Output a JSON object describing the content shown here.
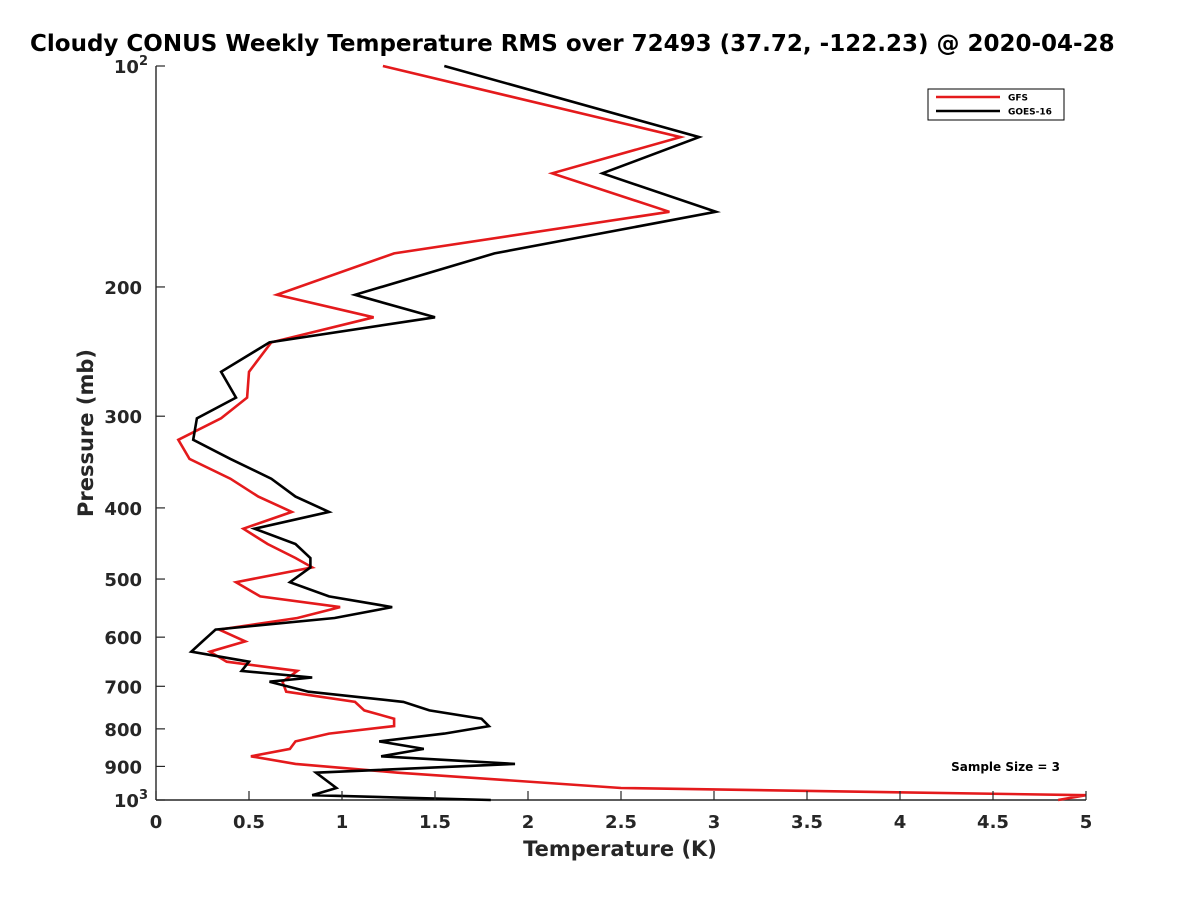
{
  "chart_data": {
    "type": "line",
    "title": "Cloudy CONUS Weekly Temperature RMS over 72493 (37.72, -122.23) @ 2020-04-28",
    "xlabel": "Temperature (K)",
    "ylabel": "Pressure (mb)",
    "xlim": [
      0,
      5
    ],
    "ylim": [
      1000,
      100
    ],
    "y_scale": "log",
    "y_direction": "reversed",
    "x_ticks": [
      {
        "value": 0,
        "label": "0"
      },
      {
        "value": 0.5,
        "label": "0.5"
      },
      {
        "value": 1,
        "label": "1"
      },
      {
        "value": 1.5,
        "label": "1.5"
      },
      {
        "value": 2,
        "label": "2"
      },
      {
        "value": 2.5,
        "label": "2.5"
      },
      {
        "value": 3,
        "label": "3"
      },
      {
        "value": 3.5,
        "label": "3.5"
      },
      {
        "value": 4,
        "label": "4"
      },
      {
        "value": 4.5,
        "label": "4.5"
      },
      {
        "value": 5,
        "label": "5"
      }
    ],
    "y_ticks": [
      {
        "value": 100,
        "base": "10",
        "exp": "2"
      },
      {
        "value": 200,
        "label": "200"
      },
      {
        "value": 300,
        "label": "300"
      },
      {
        "value": 400,
        "label": "400"
      },
      {
        "value": 500,
        "label": "500"
      },
      {
        "value": 600,
        "label": "600"
      },
      {
        "value": 700,
        "label": "700"
      },
      {
        "value": 800,
        "label": "800"
      },
      {
        "value": 900,
        "label": "900"
      },
      {
        "value": 1000,
        "base": "10",
        "exp": "3"
      }
    ],
    "grid": false,
    "legend_position": "top-right",
    "annotation": "Sample Size = 3",
    "series": [
      {
        "name": "GFS",
        "color": "#e41a1c",
        "points": [
          [
            1.22,
            100
          ],
          [
            2.82,
            125
          ],
          [
            2.13,
            140
          ],
          [
            2.76,
            158
          ],
          [
            1.28,
            180
          ],
          [
            0.65,
            205
          ],
          [
            1.17,
            220
          ],
          [
            0.62,
            238
          ],
          [
            0.5,
            261
          ],
          [
            0.49,
            283
          ],
          [
            0.35,
            302
          ],
          [
            0.12,
            323
          ],
          [
            0.18,
            343
          ],
          [
            0.4,
            365
          ],
          [
            0.55,
            386
          ],
          [
            0.73,
            405
          ],
          [
            0.47,
            427
          ],
          [
            0.6,
            448
          ],
          [
            0.75,
            468
          ],
          [
            0.84,
            482
          ],
          [
            0.43,
            505
          ],
          [
            0.56,
            528
          ],
          [
            0.99,
            546
          ],
          [
            0.76,
            565
          ],
          [
            0.34,
            586
          ],
          [
            0.48,
            608
          ],
          [
            0.29,
            628
          ],
          [
            0.38,
            648
          ],
          [
            0.76,
            667
          ],
          [
            0.68,
            690
          ],
          [
            0.7,
            712
          ],
          [
            1.07,
            735
          ],
          [
            1.12,
            755
          ],
          [
            1.28,
            775
          ],
          [
            1.28,
            793
          ],
          [
            0.93,
            812
          ],
          [
            0.75,
            832
          ],
          [
            0.72,
            852
          ],
          [
            0.51,
            872
          ],
          [
            0.75,
            893
          ],
          [
            1.3,
            918
          ],
          [
            2.5,
            963
          ],
          [
            5.0,
            985
          ],
          [
            4.85,
            1000
          ]
        ]
      },
      {
        "name": "GOES-16",
        "color": "#000000",
        "points": [
          [
            1.55,
            100
          ],
          [
            2.92,
            125
          ],
          [
            2.4,
            140
          ],
          [
            3.01,
            158
          ],
          [
            1.82,
            180
          ],
          [
            1.07,
            205
          ],
          [
            1.5,
            220
          ],
          [
            0.61,
            238
          ],
          [
            0.35,
            261
          ],
          [
            0.43,
            283
          ],
          [
            0.22,
            302
          ],
          [
            0.2,
            323
          ],
          [
            0.4,
            343
          ],
          [
            0.62,
            365
          ],
          [
            0.75,
            386
          ],
          [
            0.93,
            405
          ],
          [
            0.53,
            427
          ],
          [
            0.75,
            448
          ],
          [
            0.83,
            468
          ],
          [
            0.83,
            482
          ],
          [
            0.72,
            505
          ],
          [
            0.93,
            528
          ],
          [
            1.27,
            546
          ],
          [
            0.96,
            565
          ],
          [
            0.32,
            586
          ],
          [
            0.25,
            608
          ],
          [
            0.19,
            628
          ],
          [
            0.5,
            648
          ],
          [
            0.46,
            667
          ],
          [
            0.84,
            681
          ],
          [
            0.61,
            690
          ],
          [
            0.82,
            712
          ],
          [
            1.33,
            735
          ],
          [
            1.47,
            755
          ],
          [
            1.75,
            775
          ],
          [
            1.79,
            793
          ],
          [
            1.55,
            812
          ],
          [
            1.2,
            832
          ],
          [
            1.44,
            852
          ],
          [
            1.21,
            872
          ],
          [
            1.93,
            893
          ],
          [
            0.86,
            918
          ],
          [
            0.97,
            963
          ],
          [
            0.84,
            985
          ],
          [
            1.8,
            1000
          ]
        ]
      }
    ]
  }
}
